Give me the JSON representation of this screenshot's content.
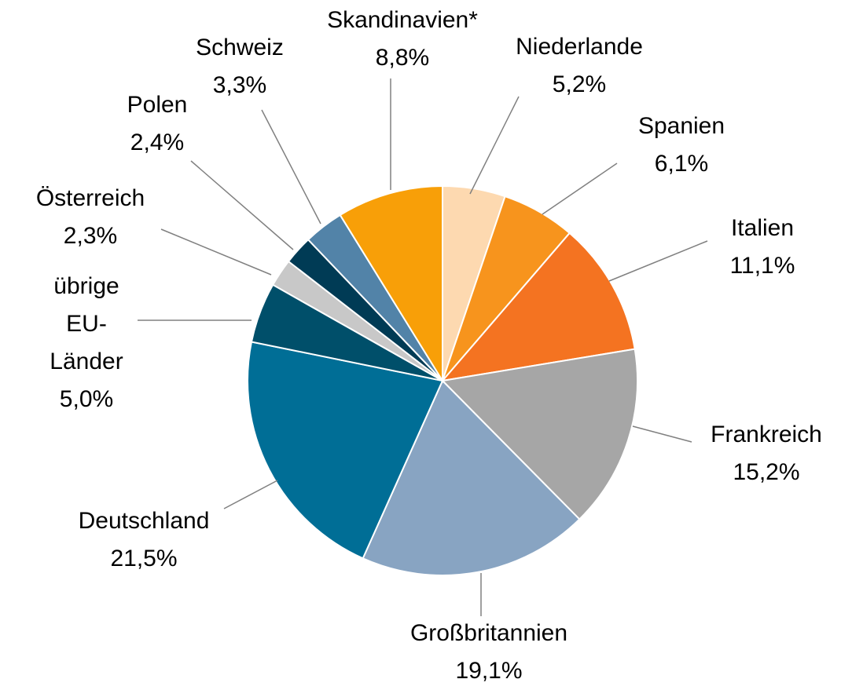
{
  "chart_data": {
    "type": "pie",
    "categories": [
      "Niederlande",
      "Spanien",
      "Italien",
      "Frankreich",
      "Großbritannien",
      "Deutschland",
      "übrige EU-Länder",
      "Österreich",
      "Polen",
      "Schweiz",
      "Skandinavien*"
    ],
    "values": [
      5.2,
      6.1,
      11.1,
      15.2,
      19.1,
      21.5,
      5.0,
      2.3,
      2.4,
      3.3,
      8.8
    ],
    "value_labels": [
      "5,2%",
      "6,1%",
      "11,1%",
      "15,2%",
      "19,1%",
      "21,5%",
      "5,0%",
      "2,3%",
      "2,4%",
      "3,3%",
      "8,8%"
    ],
    "colors": [
      "#fdd9b0",
      "#f7941d",
      "#f47321",
      "#a6a6a6",
      "#88a4c2",
      "#006e96",
      "#004f6a",
      "#c8c8c8",
      "#003b55",
      "#5283a8",
      "#f89f08"
    ]
  }
}
